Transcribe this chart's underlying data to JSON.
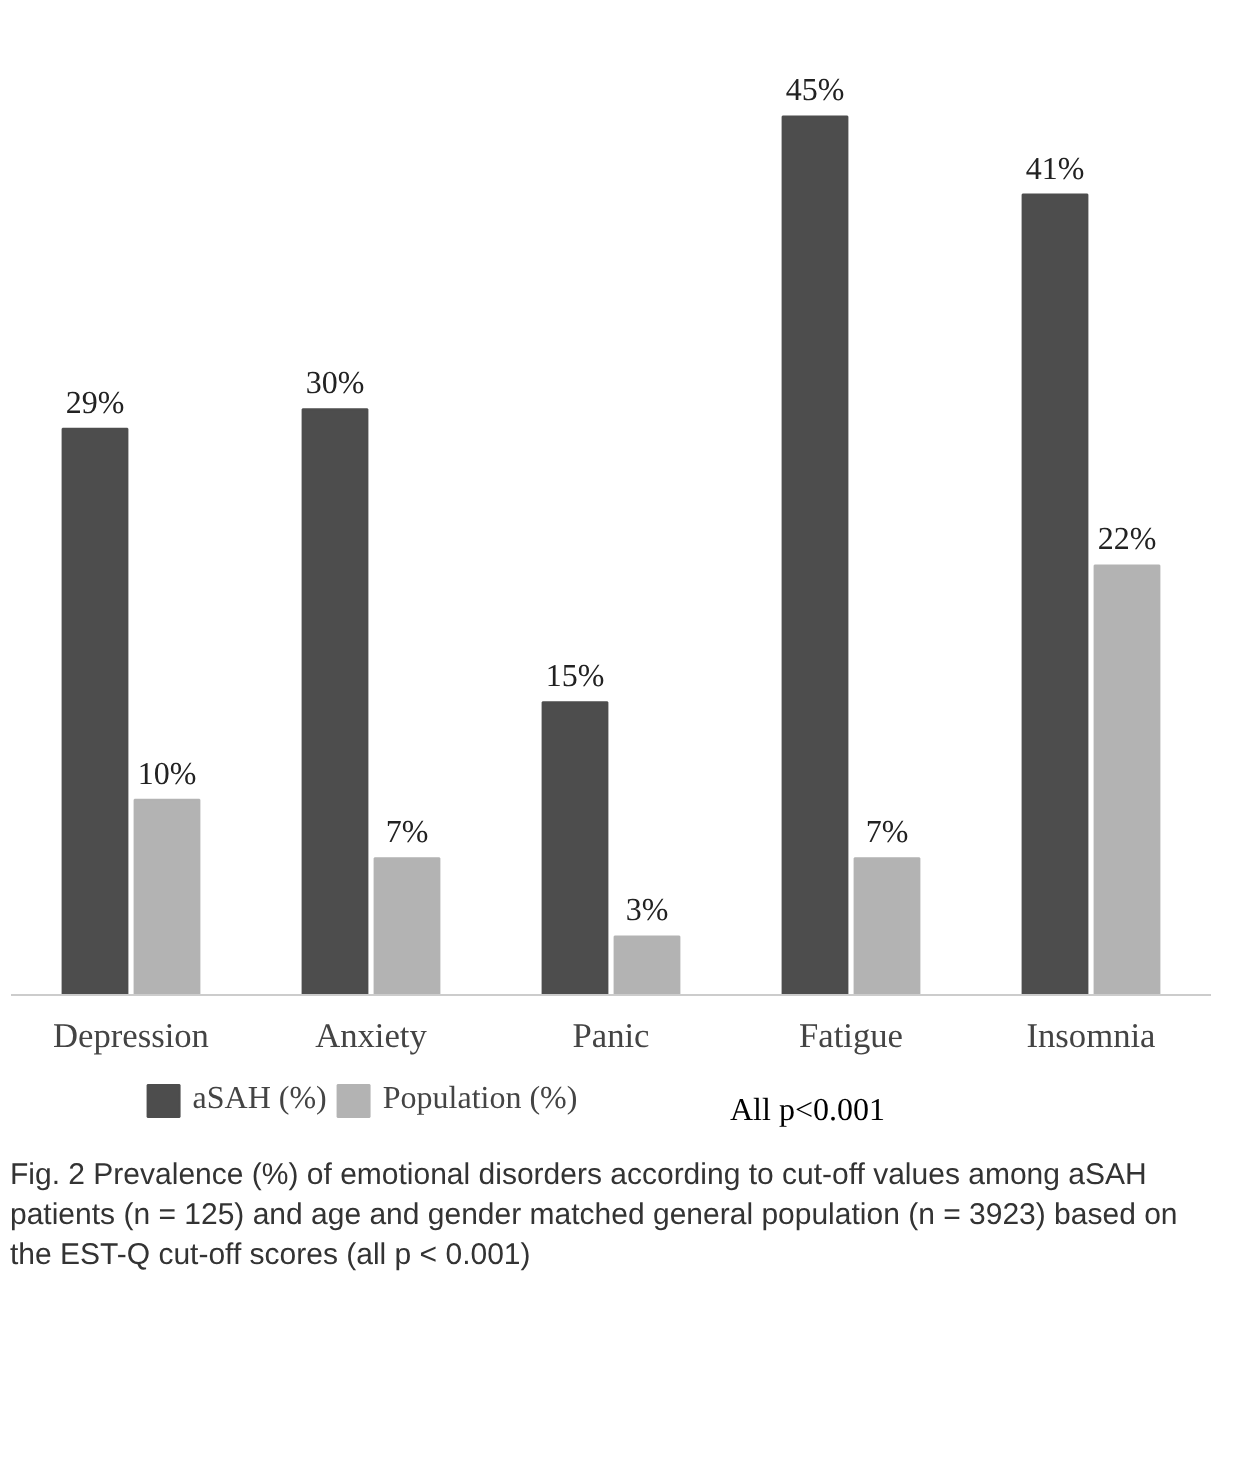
{
  "chart_data": {
    "type": "bar",
    "categories": [
      "Depression",
      "Anxiety",
      "Panic",
      "Fatigue",
      "Insomnia"
    ],
    "series": [
      {
        "name": "aSAH (%)",
        "color": "#4d4d4d",
        "values": [
          29,
          30,
          15,
          45,
          41
        ],
        "value_labels": [
          "29%",
          "30%",
          "15%",
          "45%",
          "41%"
        ]
      },
      {
        "name": "Population (%)",
        "color": "#b3b3b3",
        "values": [
          10,
          7,
          3,
          7,
          22
        ],
        "value_labels": [
          "10%",
          "7%",
          "3%",
          "7%",
          "22%"
        ]
      }
    ],
    "legend": "bottom",
    "grid": false,
    "annotations": [
      "All p<0.001",
      "Fig. 2 Prevalence (%) of emotional disorders according to cut-off values among aSAH patients (n = 125) and age and gender matched general population (n = 3923) based on the EST-Q cut-off scores (all p < 0.001)"
    ]
  }
}
